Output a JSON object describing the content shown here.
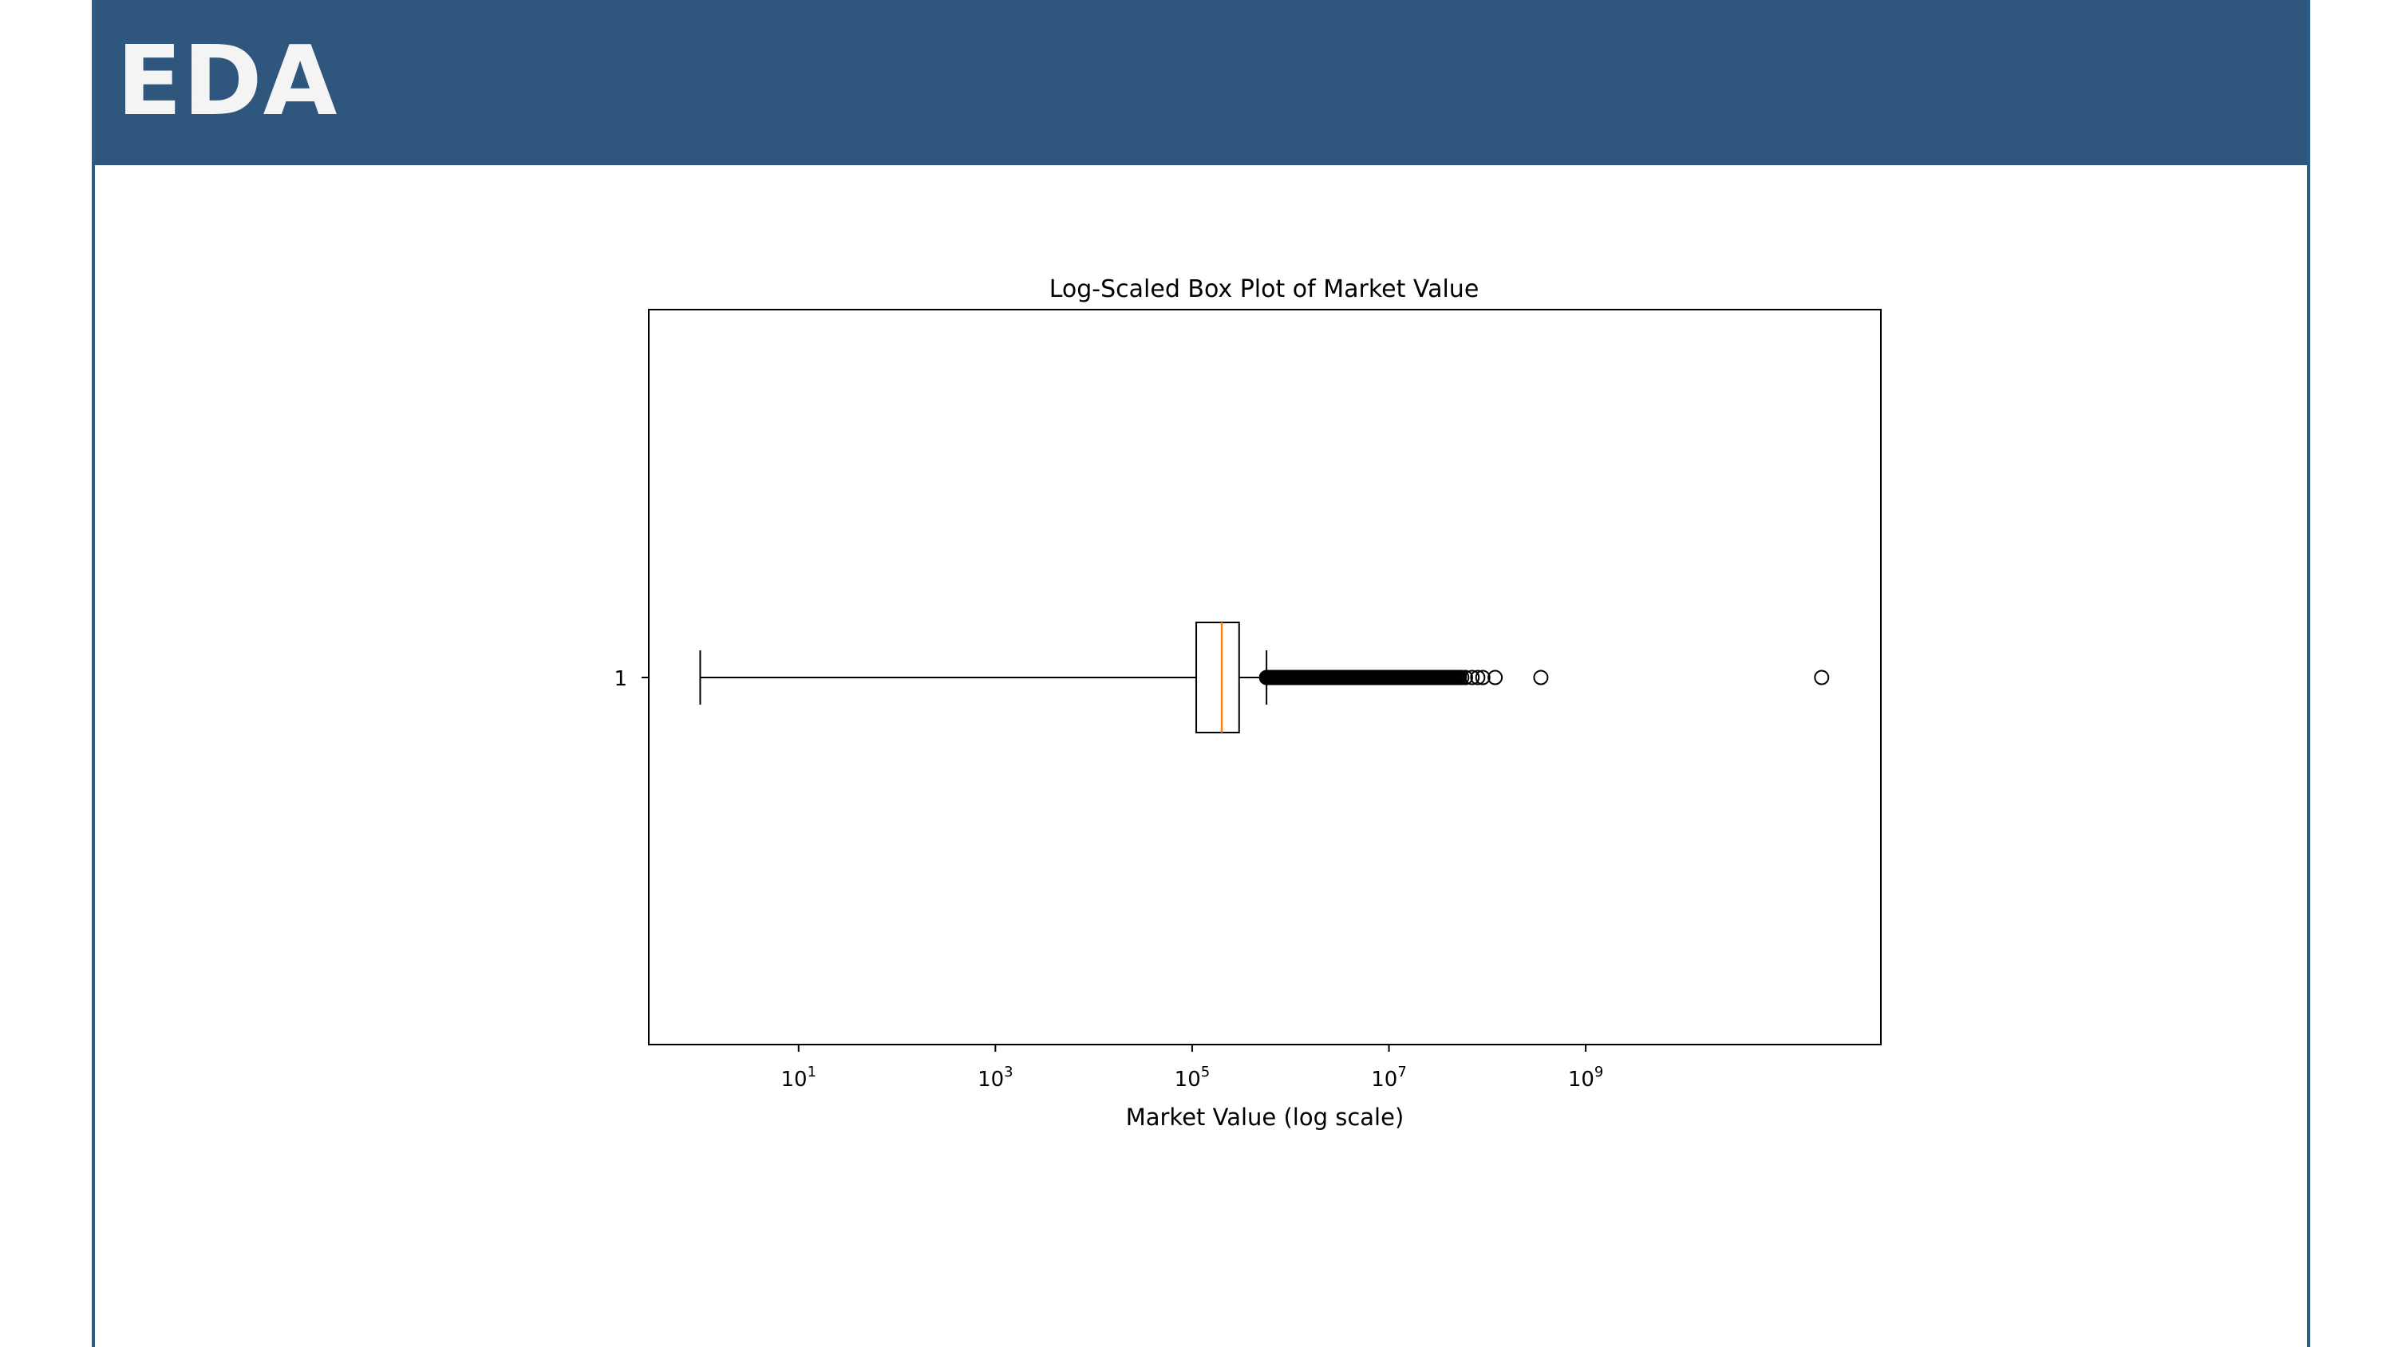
{
  "header": {
    "title": "EDA"
  },
  "chart_data": {
    "type": "boxplot",
    "title": "Log-Scaled Box Plot of Market Value",
    "xlabel": "Market Value (log scale)",
    "ylabel": "",
    "xscale": "log",
    "xlim": [
      0.3,
      1000000000000
    ],
    "x_tick_labels": [
      {
        "base": "10",
        "exp": "1",
        "value": 10
      },
      {
        "base": "10",
        "exp": "3",
        "value": 1000
      },
      {
        "base": "10",
        "exp": "5",
        "value": 100000
      },
      {
        "base": "10",
        "exp": "7",
        "value": 10000000
      },
      {
        "base": "10",
        "exp": "9",
        "value": 1000000000
      }
    ],
    "y_tick_labels": [
      "1"
    ],
    "orientation": "horizontal",
    "grid": false,
    "boxes": [
      {
        "name": "1",
        "whisker_low": 1,
        "q1": 110000,
        "median": 200000,
        "q3": 300000,
        "whisker_high": 570000,
        "outliers": [
          600000,
          620000,
          650000,
          680000,
          700000,
          750000,
          800000,
          850000,
          900000,
          950000,
          1000000,
          1100000,
          1200000,
          1300000,
          1400000,
          1500000,
          1600000,
          1700000,
          1800000,
          2000000,
          2200000,
          2400000,
          2600000,
          2800000,
          3000000,
          3300000,
          3600000,
          4000000,
          4400000,
          4800000,
          5200000,
          5700000,
          6200000,
          6800000,
          7400000,
          8000000,
          8700000,
          9500000,
          10500000,
          11500000,
          12500000,
          14000000,
          15500000,
          17000000,
          19000000,
          21000000,
          23000000,
          25000000,
          27000000,
          30000000,
          32000000,
          35000000,
          38000000,
          40000000,
          45000000,
          50000000,
          52000000,
          55000000,
          60000000,
          70000000,
          80000000,
          90000000,
          120000000,
          350000000,
          250000000000
        ]
      }
    ],
    "colors": {
      "box": "#000000",
      "median": "#ff7f0e",
      "outlier": "#000000"
    }
  }
}
